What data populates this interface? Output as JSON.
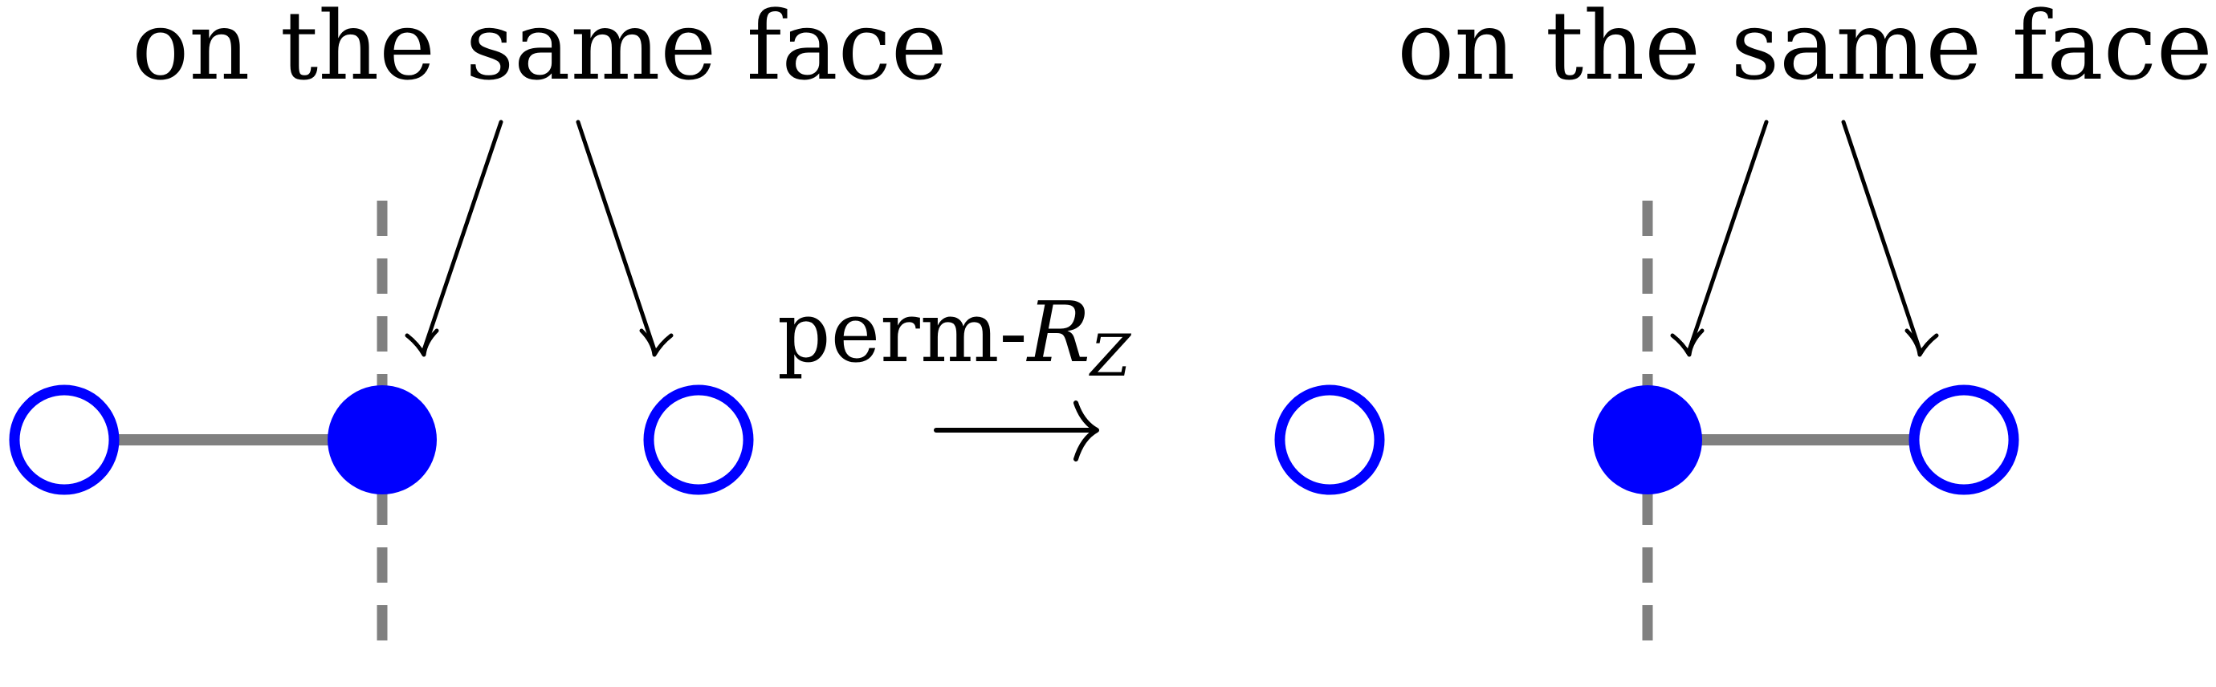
{
  "left_panel": {
    "caption": "on the same face"
  },
  "right_panel": {
    "caption": "on the same face"
  },
  "operation": {
    "prefix": "perm-",
    "symbol": "R",
    "subscript": "Z"
  },
  "colors": {
    "qubit_blue": "#0000ff",
    "edge_gray": "#808080",
    "ink": "#000000"
  },
  "left_nodes": [
    "open",
    "filled",
    "open"
  ],
  "right_nodes": [
    "open",
    "filled",
    "open"
  ],
  "left_edge": "between node 1 and node 2",
  "right_edge": "between node 2 and node 3"
}
